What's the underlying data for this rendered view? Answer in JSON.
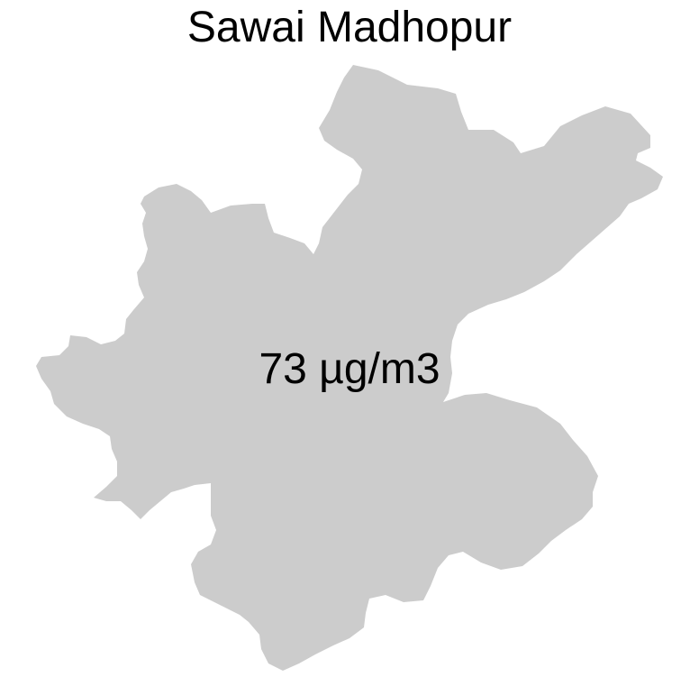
{
  "map": {
    "title": "Sawai Madhopur",
    "value_label": "73 µg/m3",
    "fill_color": "#cccccc"
  }
}
